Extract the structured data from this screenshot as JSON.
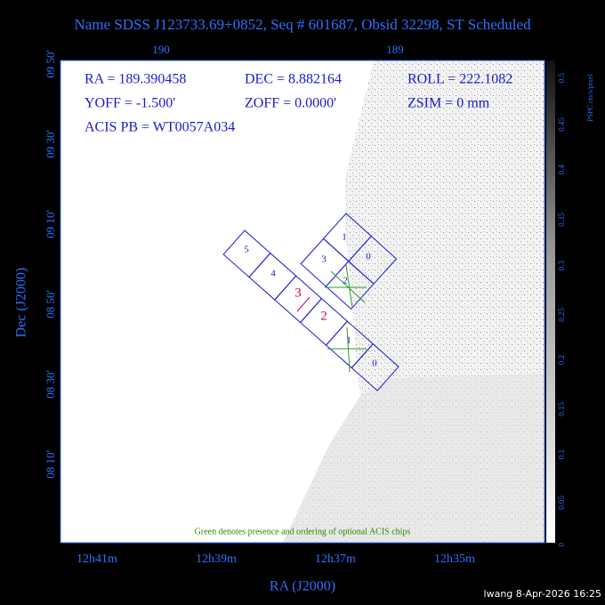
{
  "header": {
    "title": "Name SDSS J123733.69+0852, Seq # 601687, Obsid 32298, ST Scheduled"
  },
  "info": {
    "ra": "RA = 189.390458",
    "dec": "DEC = 8.882164",
    "roll": "ROLL = 222.1082",
    "yoff": "YOFF = -1.500'",
    "zoff": "ZOFF = 0.0000'",
    "zsim": "ZSIM = 0 mm",
    "acis_pb": "ACIS PB = WT0057A034"
  },
  "axes": {
    "top_ticks": [
      "190",
      "189"
    ],
    "left_ticks": [
      "09 50'",
      "09 30'",
      "09 10'",
      "08 50'",
      "08 30'",
      "08 10'"
    ],
    "bottom_ticks": [
      "12h41m",
      "12h39m",
      "12h37m",
      "12h35m"
    ],
    "x_label": "RA (J2000)",
    "y_label": "Dec (J2000)"
  },
  "colorbar": {
    "label": "PSPC cts/s/pixel",
    "ticks": [
      "0.5",
      "0.45",
      "0.4",
      "0.35",
      "0.3",
      "0.25",
      "0.2",
      "0.15",
      "0.1",
      "0.05",
      "0"
    ]
  },
  "chips": {
    "acis_s": [
      "5",
      "4",
      "3",
      "2"
    ],
    "acis_i": [
      "1",
      "3",
      "0",
      "2"
    ],
    "acis_s_lower": [
      "1",
      "0"
    ]
  },
  "note": "Green denotes presence and ordering of optional ACIS chips",
  "footer": "lwang  8-Apr-2026 16:25"
}
